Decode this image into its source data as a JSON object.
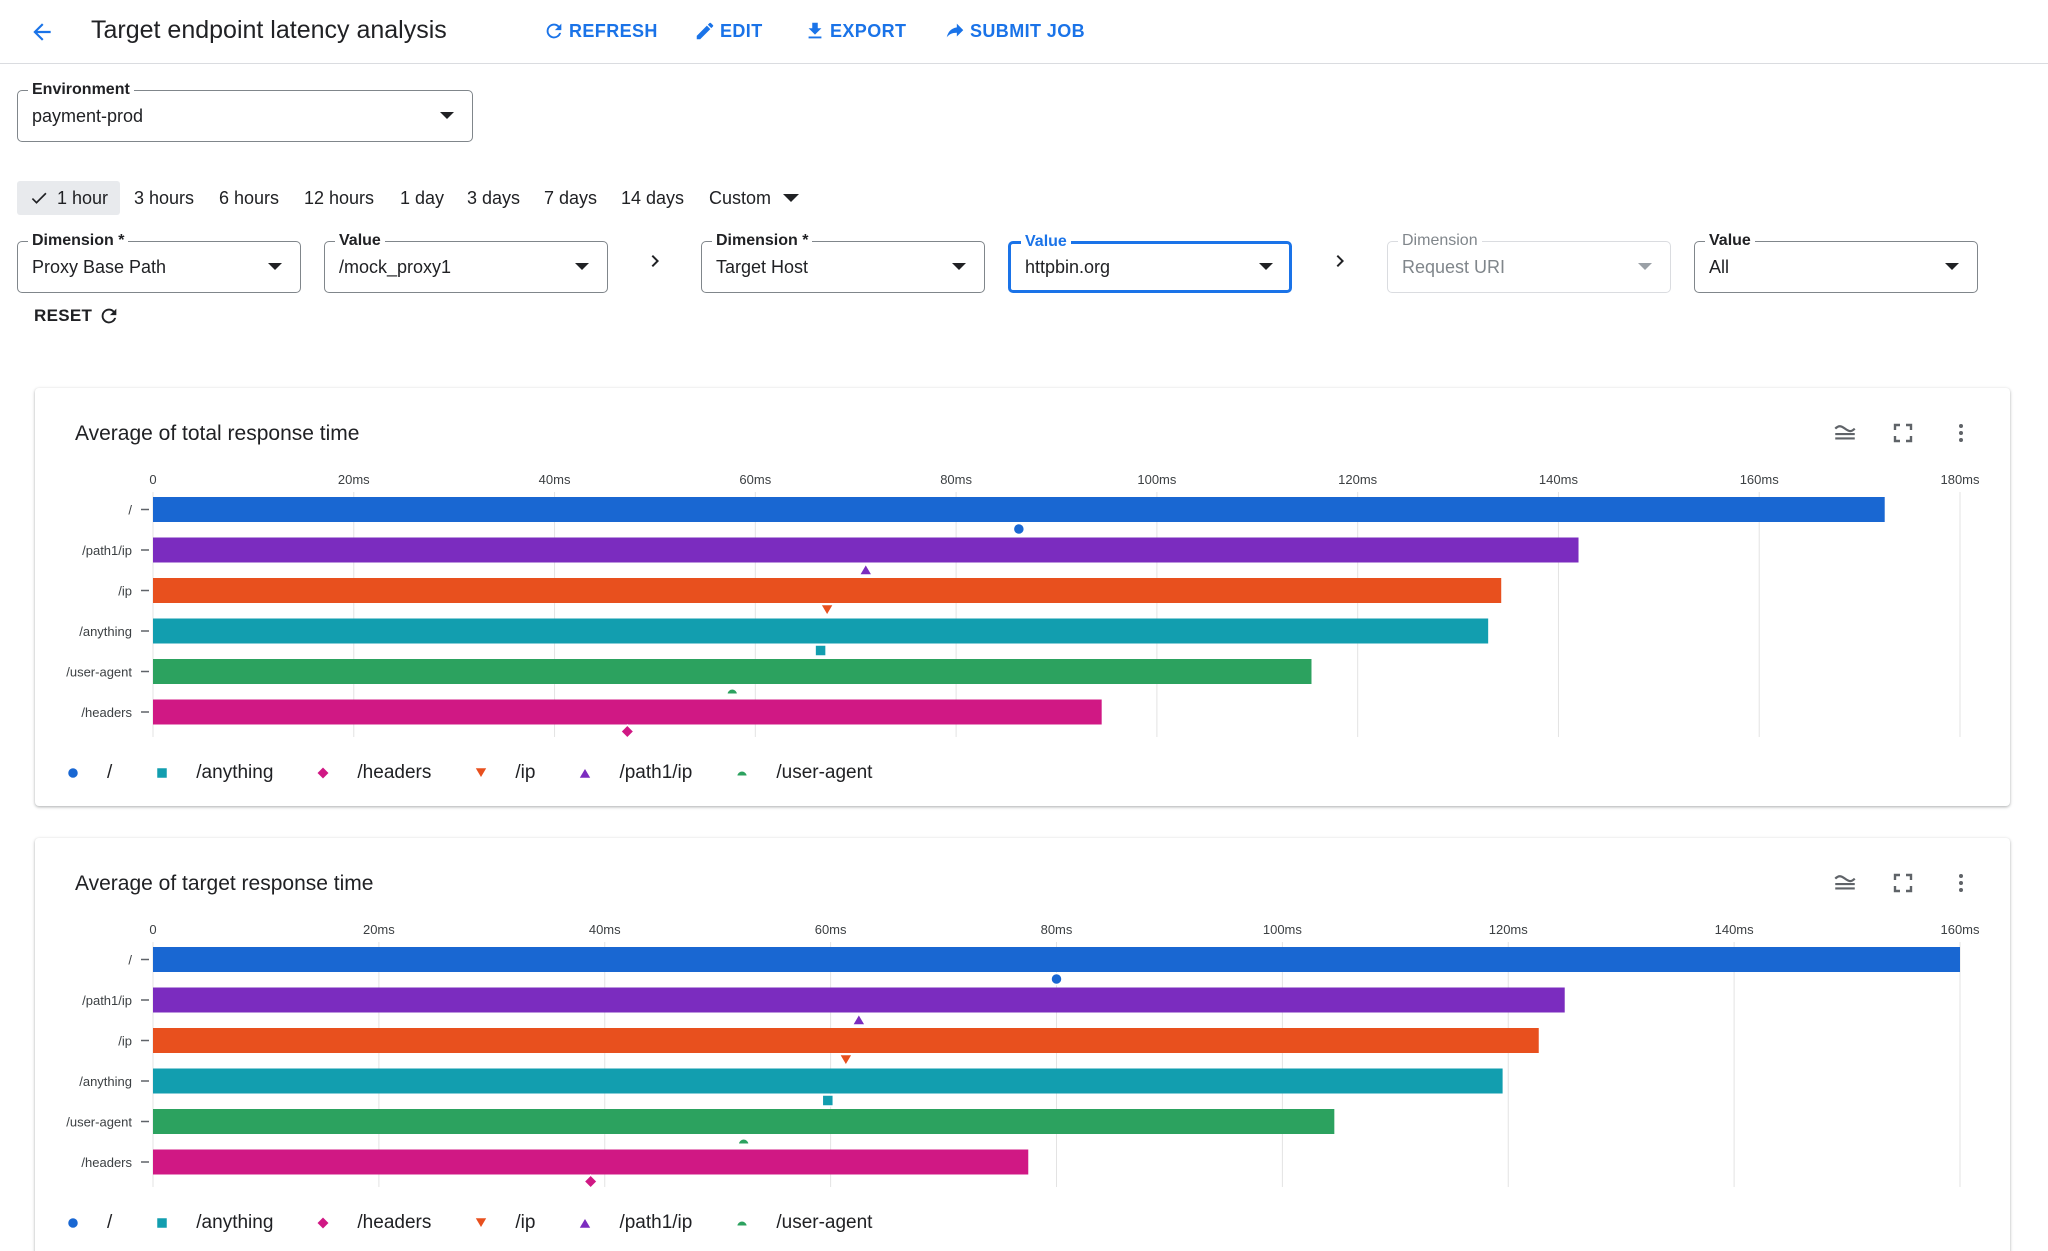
{
  "header": {
    "title": "Target endpoint latency analysis",
    "actions": {
      "refresh": "REFRESH",
      "edit": "EDIT",
      "export": "EXPORT",
      "submit": "SUBMIT JOB"
    }
  },
  "environment": {
    "label": "Environment",
    "value": "payment-prod"
  },
  "time_ranges": {
    "selected": "1 hour",
    "options": [
      "3 hours",
      "6 hours",
      "12 hours",
      "1 day",
      "3 days",
      "7 days",
      "14 days"
    ],
    "custom": "Custom"
  },
  "filters": {
    "dim1": {
      "label": "Dimension *",
      "value": "Proxy Base Path"
    },
    "val1": {
      "label": "Value",
      "value": "/mock_proxy1"
    },
    "dim2": {
      "label": "Dimension *",
      "value": "Target Host"
    },
    "val2": {
      "label": "Value",
      "value": "httpbin.org"
    },
    "dim3": {
      "label": "Dimension",
      "value": "Request URI"
    },
    "val3": {
      "label": "Value",
      "value": "All"
    }
  },
  "reset_label": "RESET",
  "colors": {
    "/": "#1967d2",
    "/path1/ip": "#7b2cbf",
    "/ip": "#e8501e",
    "/anything": "#129eaf",
    "/user-agent": "#2ca25f",
    "/headers": "#d01884"
  },
  "legend": [
    {
      "label": "/",
      "shape": "circle",
      "color": "#1967d2"
    },
    {
      "label": "/anything",
      "shape": "square",
      "color": "#129eaf"
    },
    {
      "label": "/headers",
      "shape": "diamond",
      "color": "#d01884"
    },
    {
      "label": "/ip",
      "shape": "triangle-down",
      "color": "#e8501e"
    },
    {
      "label": "/path1/ip",
      "shape": "triangle-up",
      "color": "#7b2cbf"
    },
    {
      "label": "/user-agent",
      "shape": "half-circle",
      "color": "#2ca25f"
    }
  ],
  "chart_data": [
    {
      "type": "bar",
      "orientation": "horizontal",
      "title": "Average of total response time",
      "categories": [
        "/",
        "/path1/ip",
        "/ip",
        "/anything",
        "/user-agent",
        "/headers"
      ],
      "values": [
        172.5,
        142,
        134.3,
        133,
        115.4,
        94.5
      ],
      "xlim": [
        0,
        180
      ],
      "ticks": [
        0,
        20,
        40,
        60,
        80,
        100,
        120,
        140,
        160,
        180
      ],
      "tick_labels": [
        "0",
        "20ms",
        "40ms",
        "60ms",
        "80ms",
        "100ms",
        "120ms",
        "140ms",
        "160ms",
        "180ms"
      ],
      "grid": true
    },
    {
      "type": "bar",
      "orientation": "horizontal",
      "title": "Average of target response time",
      "categories": [
        "/",
        "/path1/ip",
        "/ip",
        "/anything",
        "/user-agent",
        "/headers"
      ],
      "values": [
        160,
        125,
        122.7,
        119.5,
        104.6,
        77.5
      ],
      "xlim": [
        0,
        160
      ],
      "ticks": [
        0,
        20,
        40,
        60,
        80,
        100,
        120,
        140,
        160
      ],
      "tick_labels": [
        "0",
        "20ms",
        "40ms",
        "60ms",
        "80ms",
        "100ms",
        "120ms",
        "140ms",
        "160ms"
      ],
      "grid": true
    }
  ]
}
